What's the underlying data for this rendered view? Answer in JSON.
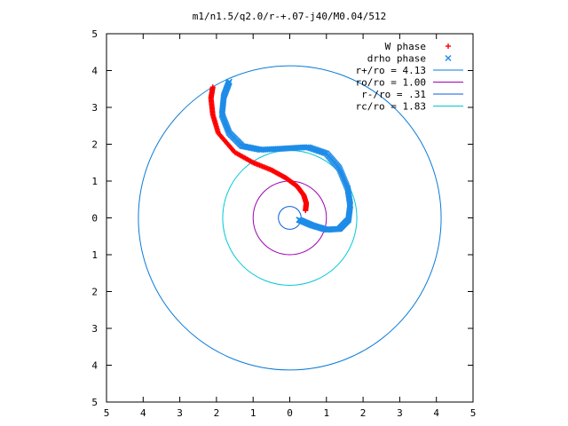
{
  "chart_data": {
    "type": "scatter",
    "title": "m1/n1.5/q2.0/r-+.07-j40/M0.04/512",
    "xlim": [
      -5,
      5
    ],
    "ylim": [
      -5,
      5
    ],
    "x_ticks": [
      -5,
      -4,
      -3,
      -2,
      -1,
      0,
      1,
      2,
      3,
      4,
      5
    ],
    "y_ticks": [
      -5,
      -4,
      -3,
      -2,
      -1,
      0,
      1,
      2,
      3,
      4,
      5
    ],
    "x_tick_labels": [
      "5",
      "4",
      "3",
      "2",
      "1",
      "0",
      "1",
      "2",
      "3",
      "4",
      "5"
    ],
    "y_tick_labels": [
      "5",
      "4",
      "3",
      "2",
      "1",
      "0",
      "1",
      "2",
      "3",
      "4",
      "5"
    ],
    "grid": false,
    "legend_position": "top-right",
    "series": [
      {
        "name": "W phase",
        "marker": "+",
        "color": "#ff0000",
        "points": [
          [
            0.43,
            0.2
          ],
          [
            0.45,
            0.4
          ],
          [
            0.38,
            0.62
          ],
          [
            0.2,
            0.86
          ],
          [
            -0.1,
            1.08
          ],
          [
            -0.5,
            1.3
          ],
          [
            -1.0,
            1.5
          ],
          [
            -1.5,
            1.78
          ],
          [
            -1.95,
            2.3
          ],
          [
            -2.1,
            2.8
          ],
          [
            -2.15,
            3.25
          ],
          [
            -2.1,
            3.55
          ]
        ]
      },
      {
        "name": "drho phase",
        "marker": "x",
        "color": "#1e8ce8",
        "points": [
          [
            0.25,
            -0.05
          ],
          [
            0.6,
            -0.2
          ],
          [
            1.0,
            -0.32
          ],
          [
            1.35,
            -0.3
          ],
          [
            1.6,
            -0.05
          ],
          [
            1.65,
            0.35
          ],
          [
            1.58,
            0.8
          ],
          [
            1.35,
            1.35
          ],
          [
            1.0,
            1.75
          ],
          [
            0.5,
            1.92
          ],
          [
            -0.2,
            1.88
          ],
          [
            -0.8,
            1.85
          ],
          [
            -1.3,
            1.95
          ],
          [
            -1.65,
            2.3
          ],
          [
            -1.85,
            2.8
          ],
          [
            -1.8,
            3.3
          ],
          [
            -1.65,
            3.7
          ]
        ]
      },
      {
        "name": "r+/ro = 4.13",
        "type": "circle",
        "radius": 4.13,
        "color": "#0b7bd8"
      },
      {
        "name": "ro/ro = 1.00",
        "type": "circle",
        "radius": 1.0,
        "color": "#a000b8"
      },
      {
        "name": "r-/ro = .31",
        "type": "circle",
        "radius": 0.31,
        "color": "#0b5fd8"
      },
      {
        "name": "rc/ro = 1.83",
        "type": "circle",
        "radius": 1.83,
        "color": "#00c8d8"
      }
    ]
  }
}
